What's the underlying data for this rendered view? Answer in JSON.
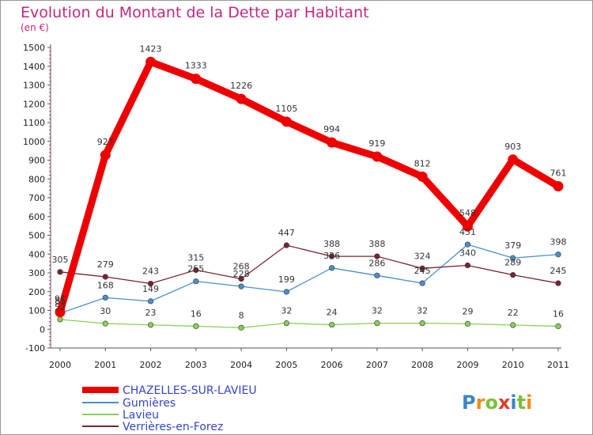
{
  "chart_data": {
    "type": "line",
    "title": "Evolution du Montant de la Dette par Habitant",
    "subtitle": "(en €)",
    "xlabel": "",
    "ylabel": "",
    "x": [
      "2000",
      "2001",
      "2002",
      "2003",
      "2004",
      "2005",
      "2006",
      "2007",
      "2008",
      "2009",
      "2010",
      "2011"
    ],
    "ylim": [
      -100,
      1500
    ],
    "yticks": [
      -100,
      0,
      100,
      200,
      300,
      400,
      500,
      600,
      700,
      800,
      900,
      1000,
      1100,
      1200,
      1300,
      1400,
      1500
    ],
    "grid": false,
    "legend": "bottom-left",
    "series": [
      {
        "name": "CHAZELLES-SUR-LAVIEU",
        "color": "#ee0000",
        "values": [
          91,
          927,
          1423,
          1333,
          1226,
          1105,
          994,
          919,
          812,
          548,
          903,
          761
        ],
        "labels": [
          "91",
          "927",
          "1423",
          "1333",
          "1226",
          "1105",
          "994",
          "919",
          "812",
          "548",
          "903",
          "761"
        ]
      },
      {
        "name": "Gumières",
        "color": "#4c8ec9",
        "values": [
          85,
          168,
          149,
          255,
          228,
          199,
          326,
          286,
          245,
          451,
          379,
          398
        ],
        "labels": [
          "85",
          "168",
          "149",
          "255",
          "228",
          "199",
          "326",
          "286",
          "245",
          "451",
          "379",
          "398"
        ]
      },
      {
        "name": "Lavieu",
        "color": "#88d055",
        "values": [
          52,
          30,
          23,
          16,
          8,
          32,
          24,
          32,
          32,
          29,
          22,
          16
        ],
        "labels": [
          "52",
          "30",
          "23",
          "16",
          "8",
          "32",
          "24",
          "32",
          "32",
          "29",
          "22",
          "16"
        ]
      },
      {
        "name": "Verrières-en-Forez",
        "color": "#7a2430",
        "values": [
          305,
          279,
          243,
          315,
          268,
          447,
          388,
          388,
          324,
          340,
          289,
          245
        ],
        "labels": [
          "305",
          "279",
          "243",
          "315",
          "268",
          "447",
          "388",
          "388",
          "324",
          "340",
          "289",
          "245"
        ]
      }
    ]
  },
  "brand": {
    "text": "Proxiti"
  }
}
